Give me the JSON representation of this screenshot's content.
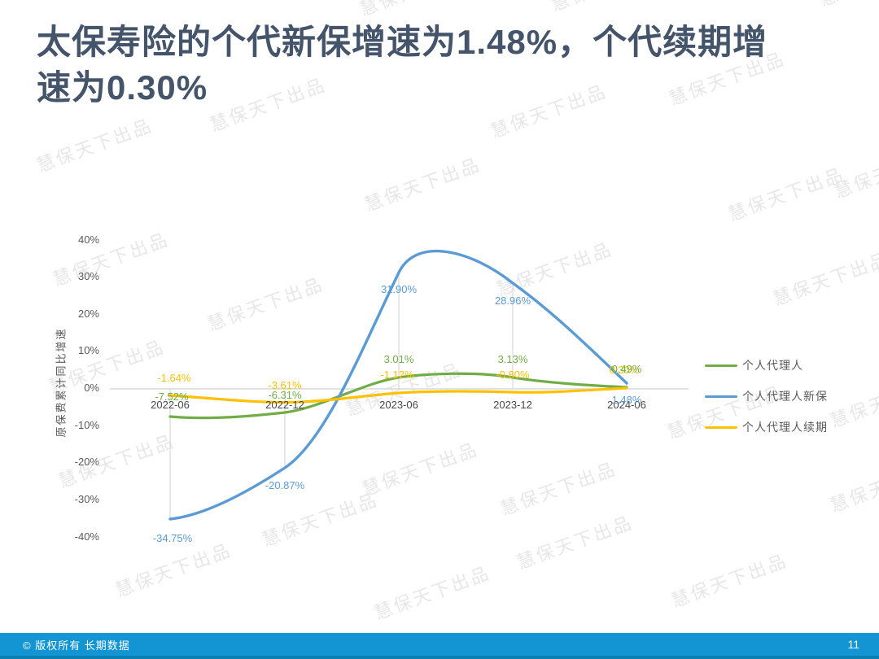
{
  "slide": {
    "title_lines": [
      "太保寿险的个代新保增速为1.48%，个代续期增",
      "速为0.30%"
    ],
    "footer_text": "© 版权所有 长期数据",
    "page_number": "11",
    "watermark_text": "慧保天下出品"
  },
  "colors": {
    "title": "#44546A",
    "watermark": "#E7E7E7",
    "axis_line": "#D9D9D9",
    "y_tick_text": "#595959",
    "x_tick_text": "#484848",
    "legend_text": "#595959",
    "ylabel_text": "#595959",
    "footer_bar": "#1395D3",
    "footer_bar_edge": "#0C7FB3",
    "footer_text": "#FFFFFF",
    "series_agent": "#70AD47",
    "series_new_business": "#5B9BD5",
    "series_renewal": "#FFC000"
  },
  "chart_data": {
    "type": "line",
    "title": "",
    "xlabel": "",
    "ylabel": "原保费累计同比增速",
    "categories": [
      "2022-06",
      "2022-12",
      "2023-06",
      "2023-12",
      "2024-06"
    ],
    "y_ticks": [
      "40%",
      "30%",
      "20%",
      "10%",
      "0%",
      "-10%",
      "-20%",
      "-30%",
      "-40%"
    ],
    "ylim": [
      -40,
      40
    ],
    "grid": "category drop lines, light gray",
    "legend_position": "right",
    "line_style": "smooth",
    "series": [
      {
        "name": "个人代理人",
        "color": "#70AD47",
        "values": [
          -7.52,
          -6.31,
          3.01,
          3.13,
          0.49
        ],
        "labels": [
          "-7.52%",
          "-6.31%",
          "3.01%",
          "3.13%",
          "0.49%"
        ]
      },
      {
        "name": "个人代理人新保",
        "color": "#5B9BD5",
        "values": [
          -34.75,
          -20.87,
          31.9,
          28.96,
          1.48
        ],
        "labels": [
          "-34.75%",
          "-20.87%",
          "31.90%",
          "28.96%",
          "1.48%"
        ]
      },
      {
        "name": "个人代理人续期",
        "color": "#FFC000",
        "values": [
          -1.64,
          -3.61,
          -1.12,
          -0.8,
          0.3
        ],
        "labels": [
          "-1.64%",
          "-3.61%",
          "-1.12%",
          "-0.80%",
          "0.30%"
        ]
      }
    ]
  }
}
